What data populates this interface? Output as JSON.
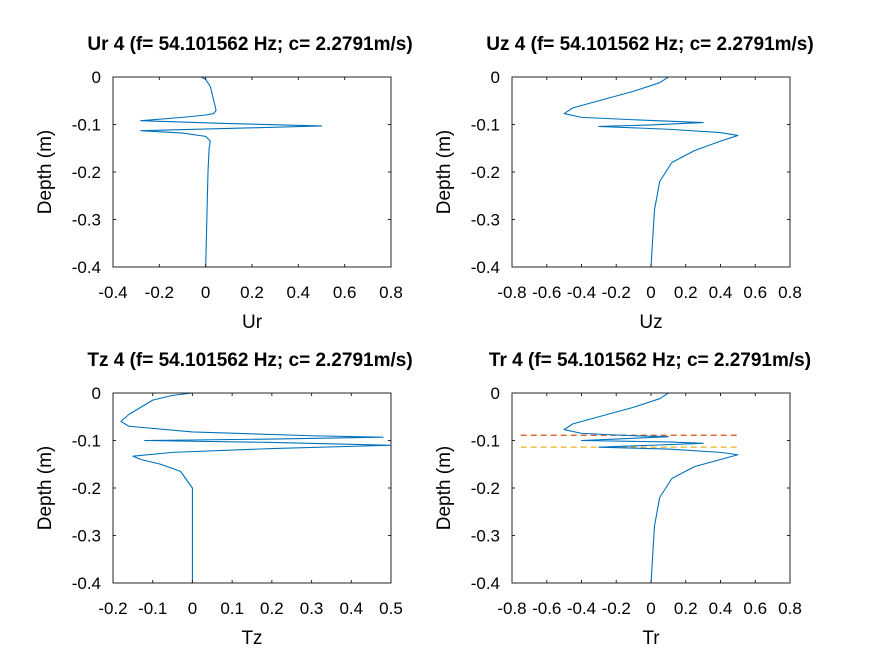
{
  "chart_data": [
    {
      "type": "line",
      "title": "Ur 4 (f= 54.101562 Hz; c= 2.2791m/s)",
      "xlabel": "Ur",
      "ylabel": "Depth (m)",
      "xlim": [
        -0.4,
        0.8
      ],
      "ylim": [
        -0.4,
        0
      ],
      "xticks": [
        "-0.4",
        "-0.2",
        "0",
        "0.2",
        "0.4",
        "0.6",
        "0.8"
      ],
      "yticks": [
        "0",
        "-0.1",
        "-0.2",
        "-0.3",
        "-0.4"
      ],
      "series": [
        {
          "color": "#0072bd",
          "points": [
            [
              -0.02,
              0
            ],
            [
              0.0,
              -0.005
            ],
            [
              0.02,
              -0.02
            ],
            [
              0.03,
              -0.04
            ],
            [
              0.04,
              -0.06
            ],
            [
              0.045,
              -0.07
            ],
            [
              0.035,
              -0.077
            ],
            [
              0.0,
              -0.08
            ],
            [
              -0.1,
              -0.085
            ],
            [
              -0.28,
              -0.092
            ],
            [
              0.1,
              -0.098
            ],
            [
              0.5,
              -0.103
            ],
            [
              0.2,
              -0.107
            ],
            [
              -0.28,
              -0.113
            ],
            [
              -0.1,
              -0.118
            ],
            [
              0.0,
              -0.125
            ],
            [
              0.02,
              -0.135
            ],
            [
              0.015,
              -0.15
            ],
            [
              0.01,
              -0.2
            ],
            [
              0.005,
              -0.3
            ],
            [
              0.0,
              -0.4
            ]
          ]
        }
      ]
    },
    {
      "type": "line",
      "title": "Uz 4 (f= 54.101562 Hz; c= 2.2791m/s)",
      "xlabel": "Uz",
      "ylabel": "Depth (m)",
      "xlim": [
        -0.8,
        0.8
      ],
      "ylim": [
        -0.4,
        0
      ],
      "xticks": [
        "-0.8",
        "-0.6",
        "-0.4",
        "-0.2",
        "0",
        "0.2",
        "0.4",
        "0.6",
        "0.8"
      ],
      "yticks": [
        "0",
        "-0.1",
        "-0.2",
        "-0.3",
        "-0.4"
      ],
      "series": [
        {
          "color": "#0072bd",
          "points": [
            [
              0.1,
              0
            ],
            [
              0.05,
              -0.012
            ],
            [
              -0.1,
              -0.03
            ],
            [
              -0.3,
              -0.05
            ],
            [
              -0.45,
              -0.065
            ],
            [
              -0.5,
              -0.077
            ],
            [
              -0.4,
              -0.085
            ],
            [
              -0.1,
              -0.09
            ],
            [
              0.3,
              -0.096
            ],
            [
              0.0,
              -0.101
            ],
            [
              -0.3,
              -0.104
            ],
            [
              0.1,
              -0.11
            ],
            [
              0.4,
              -0.117
            ],
            [
              0.5,
              -0.123
            ],
            [
              0.4,
              -0.135
            ],
            [
              0.25,
              -0.155
            ],
            [
              0.12,
              -0.18
            ],
            [
              0.05,
              -0.22
            ],
            [
              0.02,
              -0.28
            ],
            [
              0.0,
              -0.4
            ]
          ]
        }
      ]
    },
    {
      "type": "line",
      "title": "Tz 4 (f= 54.101562 Hz; c= 2.2791m/s)",
      "xlabel": "Tz",
      "ylabel": "Depth (m)",
      "xlim": [
        -0.2,
        0.5
      ],
      "ylim": [
        -0.4,
        0
      ],
      "xticks": [
        "-0.2",
        "-0.1",
        "0",
        "0.1",
        "0.2",
        "0.3",
        "0.4",
        "0.5"
      ],
      "yticks": [
        "0",
        "-0.1",
        "-0.2",
        "-0.3",
        "-0.4"
      ],
      "series": [
        {
          "color": "#0072bd",
          "points": [
            [
              0.0,
              0
            ],
            [
              -0.05,
              -0.005
            ],
            [
              -0.1,
              -0.015
            ],
            [
              -0.13,
              -0.03
            ],
            [
              -0.16,
              -0.045
            ],
            [
              -0.18,
              -0.06
            ],
            [
              -0.16,
              -0.07
            ],
            [
              0.0,
              -0.082
            ],
            [
              0.3,
              -0.09
            ],
            [
              0.48,
              -0.093
            ],
            [
              0.2,
              -0.097
            ],
            [
              -0.12,
              -0.1
            ],
            [
              0.2,
              -0.104
            ],
            [
              0.5,
              -0.11
            ],
            [
              0.2,
              -0.117
            ],
            [
              -0.05,
              -0.125
            ],
            [
              -0.15,
              -0.133
            ],
            [
              -0.13,
              -0.14
            ],
            [
              -0.08,
              -0.15
            ],
            [
              -0.03,
              -0.165
            ],
            [
              0.0,
              -0.2
            ],
            [
              0.0,
              -0.3
            ],
            [
              0.0,
              -0.4
            ]
          ]
        }
      ]
    },
    {
      "type": "line",
      "title": "Tr 4 (f= 54.101562 Hz; c= 2.2791m/s)",
      "xlabel": "Tr",
      "ylabel": "Depth (m)",
      "xlim": [
        -0.8,
        0.8
      ],
      "ylim": [
        -0.4,
        0
      ],
      "xticks": [
        "-0.8",
        "-0.6",
        "-0.4",
        "-0.2",
        "0",
        "0.2",
        "0.4",
        "0.6",
        "0.8"
      ],
      "yticks": [
        "0",
        "-0.1",
        "-0.2",
        "-0.3",
        "-0.4"
      ],
      "reference_lines": [
        {
          "y": -0.089,
          "x_range": [
            -0.75,
            0.5
          ],
          "color": "#d95319",
          "style": "dashed"
        },
        {
          "y": -0.114,
          "x_range": [
            -0.75,
            0.5
          ],
          "color": "#edb120",
          "style": "dashed"
        }
      ],
      "series": [
        {
          "color": "#0072bd",
          "points": [
            [
              0.1,
              0
            ],
            [
              0.05,
              -0.012
            ],
            [
              -0.1,
              -0.03
            ],
            [
              -0.3,
              -0.05
            ],
            [
              -0.45,
              -0.065
            ],
            [
              -0.5,
              -0.077
            ],
            [
              -0.4,
              -0.085
            ],
            [
              -0.1,
              -0.09
            ],
            [
              0.1,
              -0.092
            ],
            [
              -0.2,
              -0.097
            ],
            [
              -0.4,
              -0.1
            ],
            [
              0.1,
              -0.103
            ],
            [
              0.3,
              -0.106
            ],
            [
              0.0,
              -0.11
            ],
            [
              -0.3,
              -0.114
            ],
            [
              0.1,
              -0.118
            ],
            [
              0.4,
              -0.125
            ],
            [
              0.5,
              -0.13
            ],
            [
              0.4,
              -0.14
            ],
            [
              0.25,
              -0.155
            ],
            [
              0.12,
              -0.18
            ],
            [
              0.05,
              -0.22
            ],
            [
              0.02,
              -0.28
            ],
            [
              0.0,
              -0.4
            ]
          ]
        }
      ]
    }
  ]
}
